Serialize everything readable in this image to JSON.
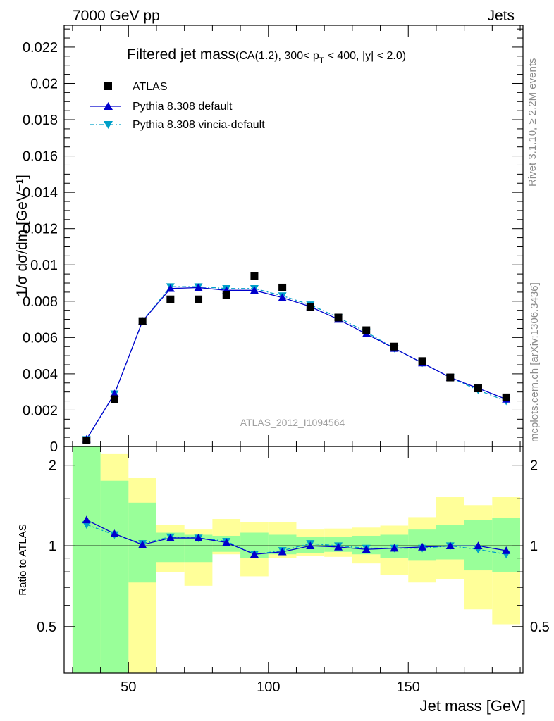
{
  "header": {
    "left": "7000 GeV pp",
    "right": "Jets"
  },
  "side_labels": {
    "rivet": "Rivet 3.1.10, ≥ 2.2M events",
    "mcplots": "mcplots.cern.ch [arXiv:1306.3436]"
  },
  "watermark": "ATLAS_2012_I1094564",
  "colors": {
    "data": "#000000",
    "default": "#0000cc",
    "vincia": "#00a0c8",
    "band_inner": "#99ff99",
    "band_outer": "#ffff99"
  },
  "chart_data": [
    {
      "type": "scatter",
      "title_main": "Filtered jet mass",
      "title_detail_pre": "(CA(1.2), 300< p",
      "title_detail_sub": "T",
      "title_detail_post": " < 400, |y| < 2.0)",
      "ylabel": "1/σ dσ/dm [GeV⁻¹]",
      "xlim": [
        27,
        191
      ],
      "ylim": [
        0,
        0.0232
      ],
      "yticks": [
        "0",
        "0.002",
        "0.004",
        "0.006",
        "0.008",
        "0.01",
        "0.012",
        "0.014",
        "0.016",
        "0.018",
        "0.02",
        "0.022"
      ],
      "x": [
        35,
        45,
        55,
        65,
        75,
        85,
        95,
        105,
        115,
        125,
        135,
        145,
        155,
        165,
        175,
        185
      ],
      "series": [
        {
          "name": "ATLAS",
          "marker": "square",
          "values": [
            0.00033,
            0.0026,
            0.0069,
            0.0081,
            0.0081,
            0.00835,
            0.0094,
            0.00875,
            0.0077,
            0.0071,
            0.0064,
            0.0055,
            0.0047,
            0.0038,
            0.0032,
            0.0027
          ]
        },
        {
          "name": "Pythia 8.308 default",
          "marker": "triangle-up",
          "values": [
            0.0004,
            0.0029,
            0.0069,
            0.0087,
            0.00875,
            0.0086,
            0.0086,
            0.0082,
            0.0077,
            0.007,
            0.0062,
            0.0054,
            0.0046,
            0.0038,
            0.0032,
            0.0026
          ]
        },
        {
          "name": "Pythia 8.308 vincia-default",
          "marker": "triangle-down",
          "values": [
            0.00038,
            0.0029,
            0.0069,
            0.0088,
            0.0088,
            0.0087,
            0.0087,
            0.0083,
            0.0078,
            0.0071,
            0.0063,
            0.0054,
            0.0046,
            0.0038,
            0.0031,
            0.0025
          ]
        }
      ]
    },
    {
      "type": "line",
      "ylabel": "Ratio to ATLAS",
      "xlabel": "Jet mass [GeV]",
      "scale": "log",
      "xlim": [
        27,
        191
      ],
      "ylim": [
        0.335,
        2.35
      ],
      "yticks": [
        0.5,
        1,
        2
      ],
      "ytick_labels": [
        "0.5",
        "1",
        "2"
      ],
      "xticks": [
        50,
        100,
        150
      ],
      "xtick_labels": [
        "50",
        "100",
        "150"
      ],
      "bins": [
        [
          30,
          40
        ],
        [
          40,
          50
        ],
        [
          50,
          60
        ],
        [
          60,
          70
        ],
        [
          70,
          80
        ],
        [
          80,
          90
        ],
        [
          90,
          100
        ],
        [
          100,
          110
        ],
        [
          110,
          120
        ],
        [
          120,
          130
        ],
        [
          130,
          140
        ],
        [
          140,
          150
        ],
        [
          150,
          160
        ],
        [
          160,
          170
        ],
        [
          170,
          180
        ],
        [
          180,
          190
        ]
      ],
      "band_inner": [
        [
          0.335,
          2.35
        ],
        [
          0.335,
          1.75
        ],
        [
          0.73,
          1.45
        ],
        [
          0.87,
          1.12
        ],
        [
          0.87,
          1.1
        ],
        [
          0.95,
          1.09
        ],
        [
          0.9,
          1.12
        ],
        [
          0.93,
          1.1
        ],
        [
          0.94,
          1.08
        ],
        [
          0.95,
          1.08
        ],
        [
          0.93,
          1.09
        ],
        [
          0.9,
          1.1
        ],
        [
          0.88,
          1.15
        ],
        [
          0.89,
          1.2
        ],
        [
          0.81,
          1.25
        ],
        [
          0.8,
          1.27
        ]
      ],
      "band_outer": [
        [
          0.335,
          2.35
        ],
        [
          0.335,
          2.2
        ],
        [
          0.335,
          1.79
        ],
        [
          0.8,
          1.2
        ],
        [
          0.71,
          1.15
        ],
        [
          0.93,
          1.26
        ],
        [
          0.77,
          1.23
        ],
        [
          0.9,
          1.23
        ],
        [
          0.92,
          1.15
        ],
        [
          0.91,
          1.16
        ],
        [
          0.86,
          1.17
        ],
        [
          0.78,
          1.19
        ],
        [
          0.73,
          1.28
        ],
        [
          0.75,
          1.52
        ],
        [
          0.58,
          1.42
        ],
        [
          0.51,
          1.52
        ]
      ],
      "reference": 1,
      "series": [
        {
          "name": "Pythia 8.308 default",
          "values": [
            1.25,
            1.11,
            1.01,
            1.07,
            1.07,
            1.03,
            0.93,
            0.95,
            1.0,
            0.99,
            0.97,
            0.98,
            0.99,
            1.0,
            1.0,
            0.96
          ]
        },
        {
          "name": "Pythia 8.308 vincia-default",
          "values": [
            1.2,
            1.1,
            1.02,
            1.08,
            1.07,
            1.04,
            0.93,
            0.96,
            1.02,
            1.0,
            0.98,
            0.98,
            0.98,
            1.0,
            0.97,
            0.93
          ]
        }
      ]
    }
  ]
}
